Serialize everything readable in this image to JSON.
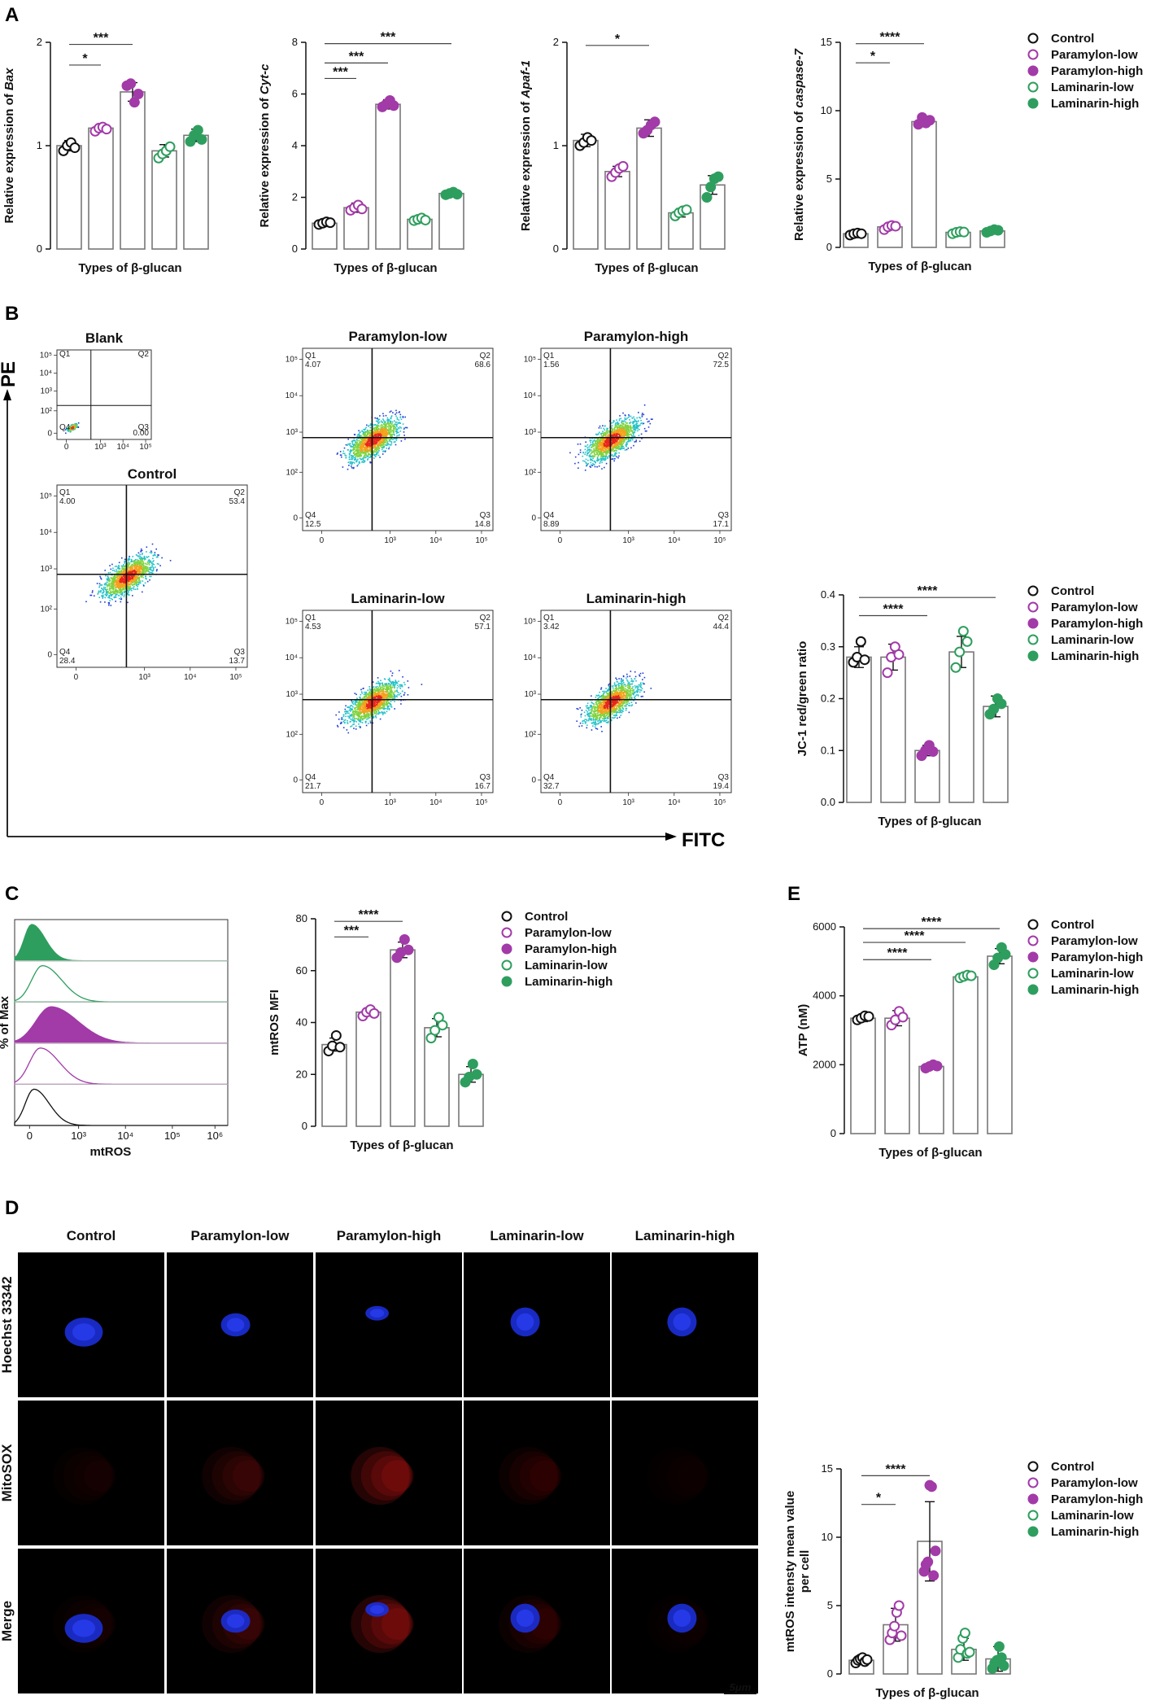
{
  "groups": [
    "Control",
    "Paramylon-low",
    "Paramylon-high",
    "Laminarin-low",
    "Laminarin-high"
  ],
  "group_styles": [
    {
      "color": "#111111",
      "filled": false
    },
    {
      "color": "#a23aa8",
      "filled": false
    },
    {
      "color": "#a23aa8",
      "filled": true
    },
    {
      "color": "#2e9e5e",
      "filled": false
    },
    {
      "color": "#2e9e5e",
      "filled": true
    }
  ],
  "panel_letters": {
    "A": "A",
    "B": "B",
    "C": "C",
    "D": "D",
    "E": "E"
  },
  "xlabel": "Types of β-glucan",
  "chart_data": [
    {
      "id": "A1",
      "type": "bar",
      "title": "",
      "xlabel": "Types of β-glucan",
      "ylabel_prefix": "Relative expression of ",
      "ylabel_gene": "Bax",
      "ylim": [
        0,
        2
      ],
      "yticks": [
        "0",
        "1",
        "2"
      ],
      "ytick_values": [
        0,
        1,
        2
      ],
      "values": [
        1.0,
        1.17,
        1.52,
        0.95,
        1.1
      ],
      "errors": [
        0.05,
        0.03,
        0.09,
        0.06,
        0.06
      ],
      "points": [
        [
          0.95,
          1.0,
          1.03,
          0.98
        ],
        [
          1.14,
          1.17,
          1.18,
          1.16
        ],
        [
          1.58,
          1.6,
          1.42,
          1.5
        ],
        [
          0.88,
          0.92,
          0.95,
          0.99
        ],
        [
          1.04,
          1.1,
          1.15,
          1.06
        ]
      ],
      "annotations": [
        {
          "from": 0,
          "to": 1,
          "label": "*",
          "y": 1.78
        },
        {
          "from": 0,
          "to": 2,
          "label": "***",
          "y": 1.98
        }
      ]
    },
    {
      "id": "A2",
      "type": "bar",
      "title": "",
      "xlabel": "Types of β-glucan",
      "ylabel_prefix": "Relative expression of ",
      "ylabel_gene": "Cyt-c",
      "ylim": [
        0,
        8
      ],
      "yticks": [
        "0",
        "2",
        "4",
        "6",
        "8"
      ],
      "ytick_values": [
        0,
        2,
        4,
        6,
        8
      ],
      "values": [
        1.0,
        1.6,
        5.6,
        1.15,
        2.15
      ],
      "errors": [
        0.08,
        0.18,
        0.18,
        0.12,
        0.1
      ],
      "points": [
        [
          0.95,
          1.0,
          1.05,
          1.02
        ],
        [
          1.5,
          1.6,
          1.7,
          1.55
        ],
        [
          5.5,
          5.6,
          5.75,
          5.55
        ],
        [
          1.1,
          1.15,
          1.2,
          1.12
        ],
        [
          2.1,
          2.15,
          2.2,
          2.12
        ]
      ],
      "annotations": [
        {
          "from": 0,
          "to": 1,
          "label": "***",
          "y": 6.6
        },
        {
          "from": 0,
          "to": 2,
          "label": "***",
          "y": 7.2
        },
        {
          "from": 0,
          "to": 4,
          "label": "***",
          "y": 7.95
        }
      ]
    },
    {
      "id": "A3",
      "type": "bar",
      "title": "",
      "xlabel": "Types of β-glucan",
      "ylabel_prefix": "Relative expression of ",
      "ylabel_gene": "Apaf-1",
      "ylim": [
        0,
        2
      ],
      "yticks": [
        "0",
        "1",
        "2"
      ],
      "ytick_values": [
        0,
        1,
        2
      ],
      "values": [
        1.05,
        0.75,
        1.17,
        0.35,
        0.62
      ],
      "errors": [
        0.06,
        0.05,
        0.08,
        0.04,
        0.09
      ],
      "points": [
        [
          1.0,
          1.03,
          1.08,
          1.05
        ],
        [
          0.7,
          0.74,
          0.78,
          0.8
        ],
        [
          1.12,
          1.15,
          1.2,
          1.23
        ],
        [
          0.32,
          0.35,
          0.37,
          0.38
        ],
        [
          0.5,
          0.6,
          0.68,
          0.7
        ]
      ],
      "annotations": [
        {
          "from": 0,
          "to": 2,
          "label": "*",
          "y": 1.97
        }
      ]
    },
    {
      "id": "A4",
      "type": "bar",
      "title": "",
      "xlabel": "Types of β-glucan",
      "ylabel_prefix": "Relative expression of ",
      "ylabel_gene": "caspase-7",
      "ylim": [
        0,
        15
      ],
      "yticks": [
        "0",
        "5",
        "10",
        "15"
      ],
      "ytick_values": [
        0,
        5,
        10,
        15
      ],
      "values": [
        1.0,
        1.5,
        9.2,
        1.1,
        1.2
      ],
      "errors": [
        0.1,
        0.2,
        0.35,
        0.15,
        0.15
      ],
      "points": [
        [
          0.9,
          1.0,
          1.05,
          1.0
        ],
        [
          1.3,
          1.5,
          1.6,
          1.55
        ],
        [
          9.0,
          9.5,
          9.1,
          9.3
        ],
        [
          1.0,
          1.1,
          1.15,
          1.12
        ],
        [
          1.1,
          1.2,
          1.3,
          1.25
        ]
      ],
      "annotations": [
        {
          "from": 0,
          "to": 1,
          "label": "*",
          "y": 13.5
        },
        {
          "from": 0,
          "to": 2,
          "label": "****",
          "y": 14.9
        }
      ]
    },
    {
      "id": "B",
      "type": "bar",
      "title": "",
      "xlabel": "Types of β-glucan",
      "ylabel": "JC-1 red/green ratio",
      "ylim": [
        0,
        0.4
      ],
      "yticks": [
        "0.0",
        "0.1",
        "0.2",
        "0.3",
        "0.4"
      ],
      "ytick_values": [
        0,
        0.1,
        0.2,
        0.3,
        0.4
      ],
      "values": [
        0.28,
        0.28,
        0.1,
        0.29,
        0.185
      ],
      "errors": [
        0.02,
        0.025,
        0.01,
        0.03,
        0.02
      ],
      "points": [
        [
          0.27,
          0.28,
          0.31,
          0.275
        ],
        [
          0.25,
          0.28,
          0.3,
          0.285
        ],
        [
          0.09,
          0.1,
          0.11,
          0.098
        ],
        [
          0.26,
          0.29,
          0.33,
          0.31
        ],
        [
          0.17,
          0.18,
          0.2,
          0.19
        ]
      ],
      "annotations": [
        {
          "from": 0,
          "to": 2,
          "label": "****",
          "y": 0.36
        },
        {
          "from": 0,
          "to": 4,
          "label": "****",
          "y": 0.395
        }
      ]
    },
    {
      "id": "C",
      "type": "bar",
      "title": "",
      "xlabel": "Types of β-glucan",
      "ylabel": "mtROS MFI",
      "ylim": [
        0,
        80
      ],
      "yticks": [
        "0",
        "20",
        "40",
        "60",
        "80"
      ],
      "ytick_values": [
        0,
        20,
        40,
        60,
        80
      ],
      "values": [
        31.5,
        44,
        68,
        38,
        20
      ],
      "errors": [
        2.5,
        1.5,
        3,
        3.5,
        3
      ],
      "points": [
        [
          29,
          31,
          35,
          30.5
        ],
        [
          42.5,
          44,
          45,
          43.5
        ],
        [
          65,
          67,
          72,
          68
        ],
        [
          34,
          37,
          42,
          39
        ],
        [
          17,
          19,
          24,
          20
        ]
      ],
      "annotations": [
        {
          "from": 0,
          "to": 1,
          "label": "***",
          "y": 73
        },
        {
          "from": 0,
          "to": 2,
          "label": "****",
          "y": 79
        }
      ]
    },
    {
      "id": "E",
      "type": "bar",
      "title": "",
      "xlabel": "Types of β-glucan",
      "ylabel": "ATP (nM)",
      "ylim": [
        0,
        6000
      ],
      "yticks": [
        "0",
        "2000",
        "4000",
        "6000"
      ],
      "ytick_values": [
        0,
        2000,
        4000,
        6000
      ],
      "values": [
        3350,
        3350,
        1950,
        4550,
        5150
      ],
      "errors": [
        100,
        220,
        80,
        50,
        220
      ],
      "points": [
        [
          3300,
          3350,
          3420,
          3400
        ],
        [
          3150,
          3300,
          3550,
          3380
        ],
        [
          1900,
          1950,
          2000,
          1960
        ],
        [
          4520,
          4560,
          4600,
          4580
        ],
        [
          4900,
          5100,
          5400,
          5200
        ]
      ],
      "annotations": [
        {
          "from": 0,
          "to": 2,
          "label": "****",
          "y": 5050
        },
        {
          "from": 0,
          "to": 3,
          "label": "****",
          "y": 5550
        },
        {
          "from": 0,
          "to": 4,
          "label": "****",
          "y": 5950
        }
      ]
    },
    {
      "id": "D",
      "type": "bar",
      "title": "",
      "xlabel": "Types of β-glucan",
      "ylabel": "mtROS intensty mean value per cell",
      "ylabel_lines": [
        "mtROS intensty mean value",
        "per cell"
      ],
      "ylim": [
        0,
        15
      ],
      "yticks": [
        "0",
        "5",
        "10",
        "15"
      ],
      "ytick_values": [
        0,
        5,
        10,
        15
      ],
      "values": [
        1.0,
        3.6,
        9.7,
        1.8,
        1.1
      ],
      "errors": [
        0.25,
        1.2,
        2.9,
        0.8,
        0.9
      ],
      "points": [
        [
          0.8,
          1.0,
          1.1,
          1.2,
          0.9,
          1.05
        ],
        [
          2.5,
          3.0,
          3.5,
          4.5,
          5.0,
          2.8
        ],
        [
          7.5,
          8.0,
          8.2,
          13.8,
          13.7,
          7.2,
          9.0
        ],
        [
          1.2,
          1.8,
          2.6,
          3.0,
          1.5,
          1.6
        ],
        [
          0.4,
          0.8,
          1.0,
          2.0,
          1.2,
          0.6
        ]
      ],
      "annotations": [
        {
          "from": 0,
          "to": 1,
          "label": "*",
          "y": 12.4
        },
        {
          "from": 0,
          "to": 2,
          "label": "****",
          "y": 14.5
        }
      ]
    }
  ],
  "flow": {
    "y_axis_label": "PE",
    "x_axis_label": "FITC",
    "plots": [
      {
        "id": "blank",
        "title": "Blank",
        "q1_label": "Q1",
        "q1": "",
        "q2_label": "Q2",
        "q2": "",
        "q3_label": "Q3",
        "q3": "0.00",
        "q4_label": "Q4",
        "q4": ""
      },
      {
        "id": "control",
        "title": "Control",
        "q1_label": "Q1",
        "q1": "4.00",
        "q2_label": "Q2",
        "q2": "53.4",
        "q3_label": "Q3",
        "q3": "13.7",
        "q4_label": "Q4",
        "q4": "28.4"
      },
      {
        "id": "paramylon-low",
        "title": "Paramylon-low",
        "q1_label": "Q1",
        "q1": "4.07",
        "q2_label": "Q2",
        "q2": "68.6",
        "q3_label": "Q3",
        "q3": "14.8",
        "q4_label": "Q4",
        "q4": "12.5"
      },
      {
        "id": "paramylon-high",
        "title": "Paramylon-high",
        "q1_label": "Q1",
        "q1": "1.56",
        "q2_label": "Q2",
        "q2": "72.5",
        "q3_label": "Q3",
        "q3": "17.1",
        "q4_label": "Q4",
        "q4": "8.89"
      },
      {
        "id": "laminarin-low",
        "title": "Laminarin-low",
        "q1_label": "Q1",
        "q1": "4.53",
        "q2_label": "Q2",
        "q2": "57.1",
        "q3_label": "Q3",
        "q3": "16.7",
        "q4_label": "Q4",
        "q4": "21.7"
      },
      {
        "id": "laminarin-high",
        "title": "Laminarin-high",
        "q1_label": "Q1",
        "q1": "3.42",
        "q2_label": "Q2",
        "q2": "44.4",
        "q3_label": "Q3",
        "q3": "19.4",
        "q4_label": "Q4",
        "q4": "32.7"
      }
    ],
    "y_tick_labels": [
      "0",
      "10²",
      "10³",
      "10⁴",
      "10⁵"
    ],
    "x_tick_labels": [
      "0",
      "10³",
      "10⁴",
      "10⁵"
    ]
  },
  "histogram": {
    "y_axis_label": "% of Max",
    "x_axis_label": "mtROS",
    "x_tick_labels": [
      "0",
      "10³",
      "10⁴",
      "10⁵",
      "10⁶"
    ],
    "tracks": [
      "Laminarin-high",
      "Laminarin-low",
      "Paramylon-high",
      "Paramylon-low",
      "Control"
    ]
  },
  "images": {
    "columns": [
      "Control",
      "Paramylon-low",
      "Paramylon-high",
      "Laminarin-low",
      "Laminarin-high"
    ],
    "rows": [
      "Hoechst 33342",
      "MitoSOX",
      "Merge"
    ],
    "scale_bar": "5μm"
  }
}
